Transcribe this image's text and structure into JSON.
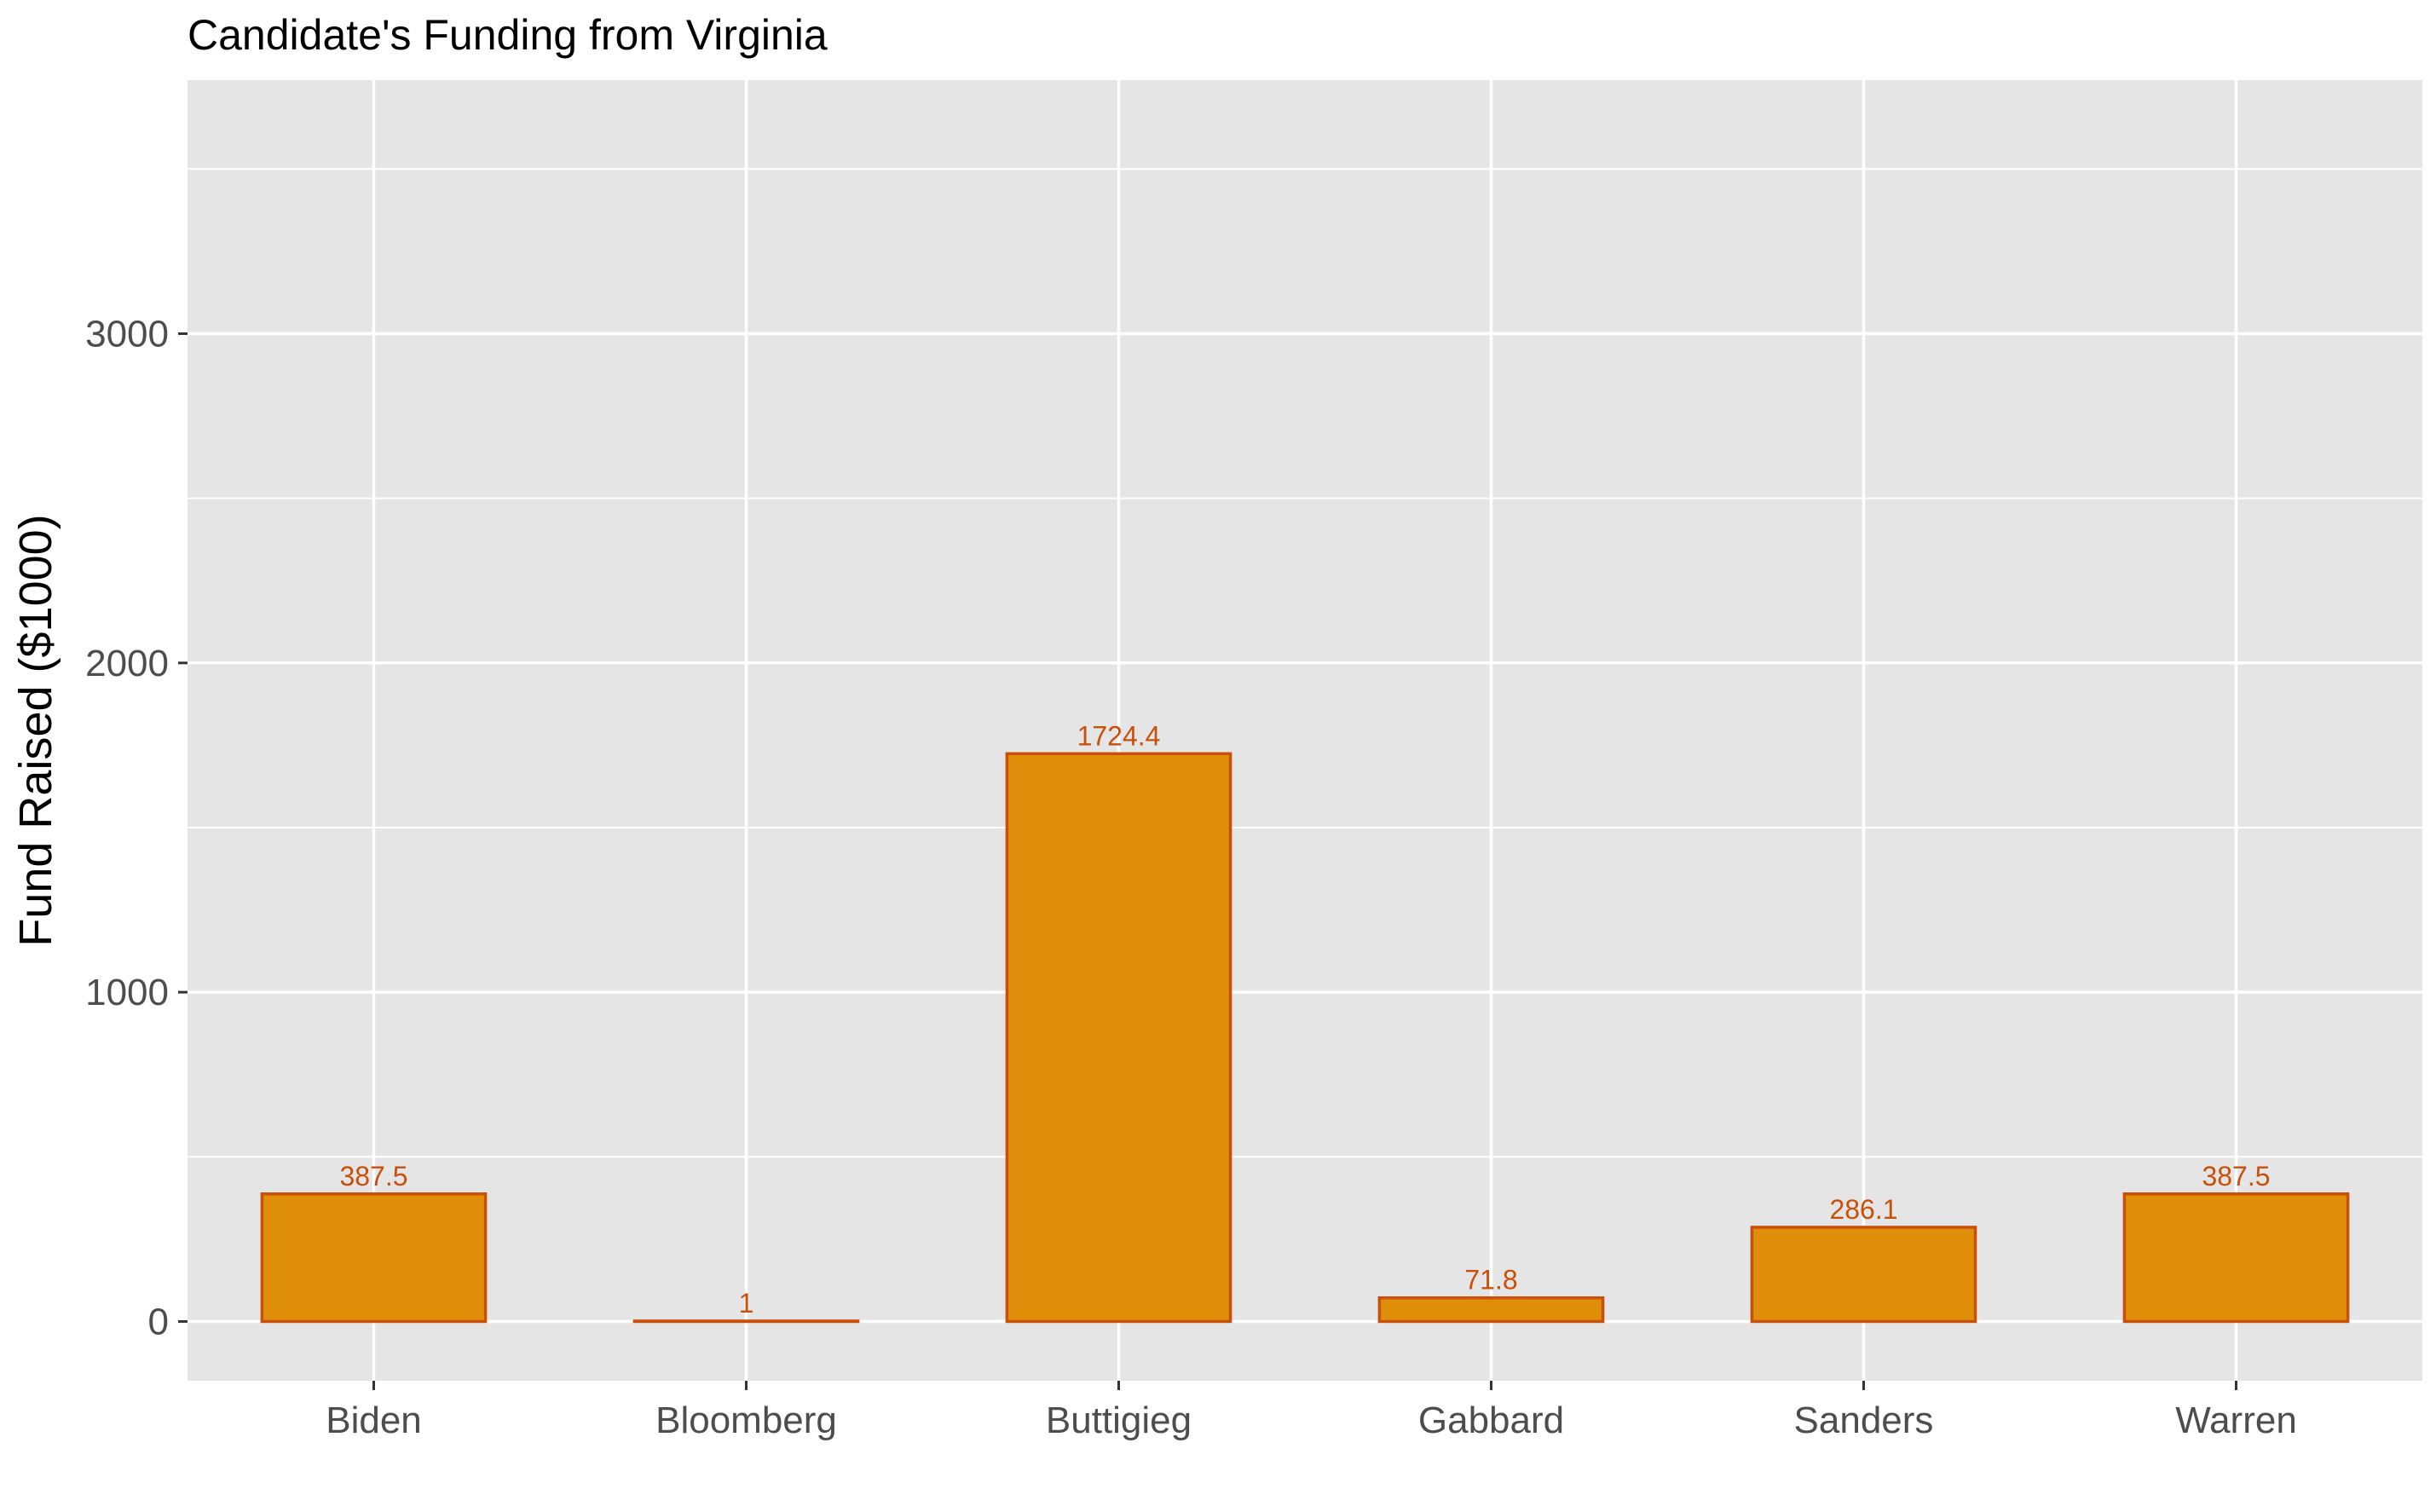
{
  "chart_data": {
    "type": "bar",
    "title": "Candidate's Funding from Virginia",
    "xlabel": "",
    "ylabel": "Fund Raised ($1000)",
    "categories": [
      "Biden",
      "Bloomberg",
      "Buttigieg",
      "Gabbard",
      "Sanders",
      "Warren"
    ],
    "values": [
      387.5,
      1,
      1724.4,
      71.8,
      286.1,
      387.5
    ],
    "data_labels": [
      "387.5",
      "1",
      "1724.4",
      "71.8",
      "286.1",
      "387.5"
    ],
    "ylim": [
      -180,
      3770
    ],
    "y_ticks": [
      0,
      1000,
      2000,
      3000
    ],
    "y_tick_labels": [
      "0",
      "1000",
      "2000",
      "3000"
    ],
    "y_minor_ticks": [
      500,
      1500,
      2500,
      3500
    ],
    "grid": true,
    "legend": "none",
    "colors": {
      "bar_fill": "#DF8E0A",
      "bar_stroke": "#C9500A",
      "label": "#C9500A",
      "panel_bg": "#E5E5E5",
      "grid": "#FFFFFF",
      "tick_text": "#4D4D4D",
      "tick_mark": "#333333"
    }
  }
}
